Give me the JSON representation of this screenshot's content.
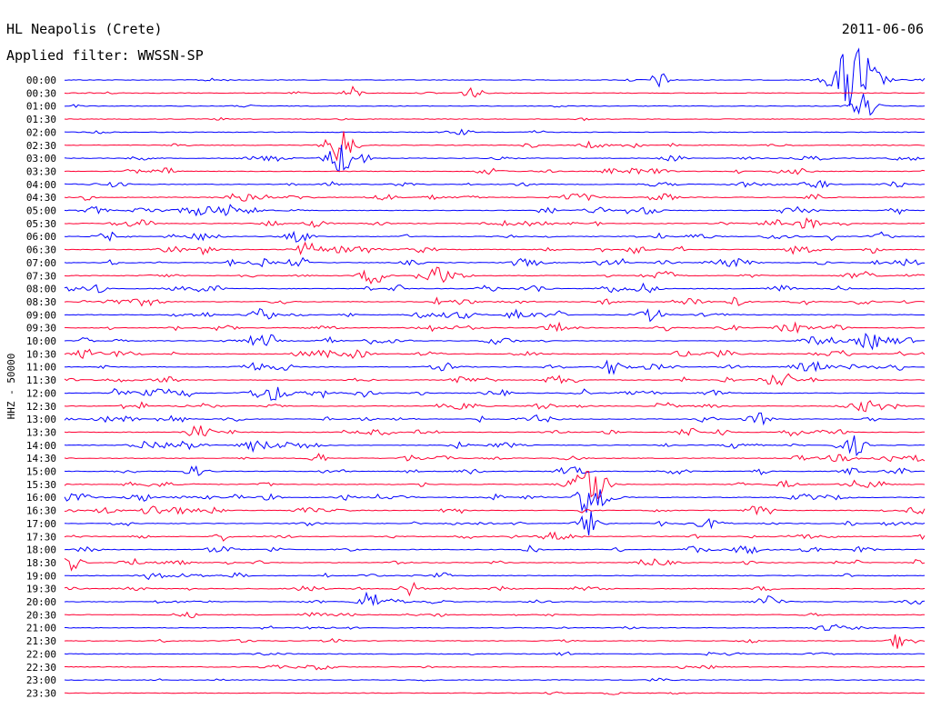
{
  "header": {
    "station": "HL Neapolis (Crete)",
    "date": "2011-06-06",
    "filter": "Applied filter: WWSSN-SP",
    "channel_label": "HHZ - 50000"
  },
  "colors": {
    "blue": "#0000ff",
    "red": "#ff0033",
    "text": "#000000",
    "background": "#ffffff"
  },
  "chart_data": {
    "type": "line",
    "title": "HL Neapolis (Crete)",
    "subtitle": "Applied filter: WWSSN-SP",
    "ylabel": "HHZ - 50000",
    "xlabel": "",
    "grid": false,
    "legend": "none",
    "x_range_minutes": [
      0,
      30
    ],
    "series_color_cycle": [
      "#0000ff",
      "#ff0033"
    ],
    "rows": [
      "00:00",
      "00:30",
      "01:00",
      "01:30",
      "02:00",
      "02:30",
      "03:00",
      "03:30",
      "04:00",
      "04:30",
      "05:00",
      "05:30",
      "06:00",
      "06:30",
      "07:00",
      "07:30",
      "08:00",
      "08:30",
      "09:00",
      "09:30",
      "10:00",
      "10:30",
      "11:00",
      "11:30",
      "12:00",
      "12:30",
      "13:00",
      "13:30",
      "14:00",
      "14:30",
      "15:00",
      "15:30",
      "16:00",
      "16:30",
      "17:00",
      "17:30",
      "18:00",
      "18:30",
      "19:00",
      "19:30",
      "20:00",
      "20:30",
      "21:00",
      "21:30",
      "22:00",
      "22:30",
      "23:00",
      "23:30"
    ],
    "activity_level": [
      0.15,
      0.15,
      0.2,
      0.15,
      0.2,
      0.35,
      0.5,
      0.55,
      0.6,
      0.7,
      0.75,
      0.75,
      0.75,
      0.8,
      0.8,
      0.85,
      0.8,
      0.8,
      0.8,
      0.8,
      0.85,
      0.8,
      0.85,
      0.8,
      0.8,
      0.75,
      0.75,
      0.75,
      0.8,
      0.75,
      0.7,
      0.7,
      0.7,
      0.7,
      0.7,
      0.7,
      0.7,
      0.65,
      0.5,
      0.45,
      0.45,
      0.4,
      0.35,
      0.3,
      0.3,
      0.25,
      0.2,
      0.15
    ],
    "events": [
      {
        "row": "00:00",
        "minute": 27.5,
        "amplitude": 3.0
      },
      {
        "row": "00:00",
        "minute": 20.7,
        "amplitude": 0.6
      },
      {
        "row": "00:30",
        "minute": 14.2,
        "amplitude": 0.5
      },
      {
        "row": "00:30",
        "minute": 10.0,
        "amplitude": 0.5
      },
      {
        "row": "01:00",
        "minute": 27.8,
        "amplitude": 1.0
      },
      {
        "row": "02:30",
        "minute": 9.6,
        "amplitude": 1.4
      },
      {
        "row": "03:00",
        "minute": 9.6,
        "amplitude": 1.3
      },
      {
        "row": "05:00",
        "minute": 20.3,
        "amplitude": 0.6
      },
      {
        "row": "07:30",
        "minute": 12.9,
        "amplitude": 0.7
      },
      {
        "row": "15:30",
        "minute": 18.3,
        "amplitude": 1.6
      },
      {
        "row": "16:00",
        "minute": 18.3,
        "amplitude": 1.6
      },
      {
        "row": "17:00",
        "minute": 18.3,
        "amplitude": 1.0
      },
      {
        "row": "16:30",
        "minute": 3.0,
        "amplitude": 0.5
      },
      {
        "row": "18:30",
        "minute": 0.3,
        "amplitude": 0.5
      },
      {
        "row": "19:30",
        "minute": 12.0,
        "amplitude": 0.6
      },
      {
        "row": "20:00",
        "minute": 10.6,
        "amplitude": 0.7
      },
      {
        "row": "20:00",
        "minute": 24.4,
        "amplitude": 0.5
      },
      {
        "row": "21:30",
        "minute": 29.1,
        "amplitude": 0.7
      },
      {
        "row": "14:00",
        "minute": 27.5,
        "amplitude": 0.8
      }
    ]
  }
}
